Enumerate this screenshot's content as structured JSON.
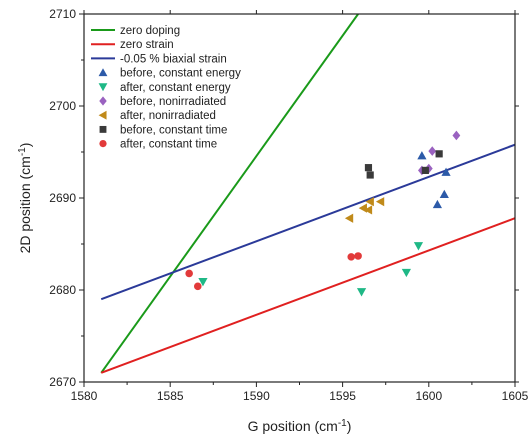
{
  "chart_data": {
    "type": "scatter",
    "xlabel": "G position (cm",
    "xlabel_unit_sup": "-1",
    "xlabel_close": ")",
    "ylabel": "2D position (cm",
    "ylabel_unit_sup": "-1",
    "ylabel_close": ")",
    "xlim": [
      1580,
      1605
    ],
    "ylim": [
      2670,
      2710
    ],
    "xticks": [
      "1580",
      "1585",
      "1590",
      "1595",
      "1600",
      "1605"
    ],
    "yticks": [
      "2670",
      "2680",
      "2690",
      "2700",
      "2710"
    ],
    "grid": false,
    "legend_position": "top-left",
    "lines": [
      {
        "name": "zero doping",
        "color": "#1a9a1a",
        "x": [
          1581,
          1595.9
        ],
        "y": [
          2671,
          2710
        ]
      },
      {
        "name": "zero strain",
        "color": "#e02020",
        "x": [
          1581,
          1605
        ],
        "y": [
          2671,
          2687.8
        ]
      },
      {
        "name": "-0.05 % biaxial strain",
        "color": "#2b3a99",
        "x": [
          1581,
          1605
        ],
        "y": [
          2679,
          2695.8
        ]
      }
    ],
    "series": [
      {
        "name": "before, constant energy",
        "marker": "triangle-up",
        "color": "#2c5aa8",
        "points": [
          [
            1599.6,
            2694.6
          ],
          [
            1601.0,
            2692.8
          ],
          [
            1600.9,
            2690.4
          ],
          [
            1600.5,
            2689.3
          ]
        ]
      },
      {
        "name": "after, constant energy",
        "marker": "triangle-down",
        "color": "#1fb886",
        "points": [
          [
            1586.9,
            2680.9
          ],
          [
            1596.1,
            2679.8
          ],
          [
            1598.7,
            2681.9
          ],
          [
            1599.4,
            2684.8
          ]
        ]
      },
      {
        "name": "before, nonirradiated",
        "marker": "diamond",
        "color": "#9a62c0",
        "points": [
          [
            1601.6,
            2696.8
          ],
          [
            1600.2,
            2695.1
          ],
          [
            1599.6,
            2693.0
          ],
          [
            1600.0,
            2693.2
          ]
        ]
      },
      {
        "name": "after, nonirradiated",
        "marker": "triangle-left",
        "color": "#c08a1a",
        "points": [
          [
            1595.4,
            2687.8
          ],
          [
            1596.2,
            2688.9
          ],
          [
            1596.5,
            2688.7
          ],
          [
            1596.6,
            2689.6
          ],
          [
            1597.2,
            2689.6
          ]
        ]
      },
      {
        "name": "before, constant time",
        "marker": "square",
        "color": "#3a3a3a",
        "points": [
          [
            1596.5,
            2693.3
          ],
          [
            1596.6,
            2692.5
          ],
          [
            1600.6,
            2694.8
          ],
          [
            1599.8,
            2693.0
          ]
        ]
      },
      {
        "name": "after, constant time",
        "marker": "circle",
        "color": "#e23a3a",
        "points": [
          [
            1586.1,
            2681.8
          ],
          [
            1586.6,
            2680.4
          ],
          [
            1595.5,
            2683.6
          ],
          [
            1595.9,
            2683.7
          ]
        ]
      }
    ]
  }
}
